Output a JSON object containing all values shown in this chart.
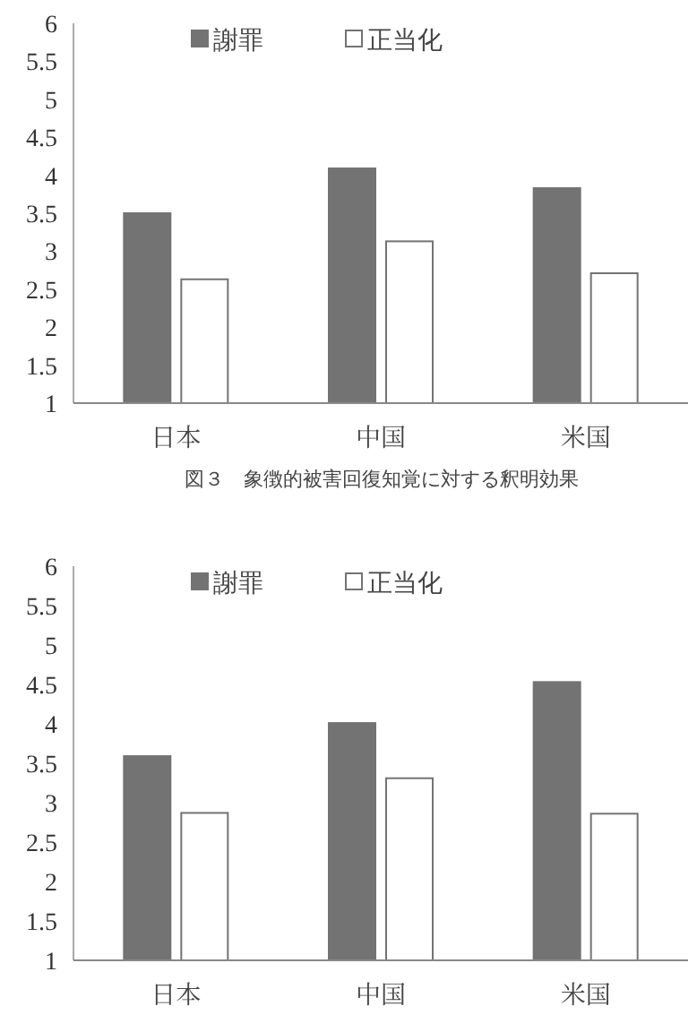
{
  "chart_data": [
    {
      "type": "bar",
      "categories": [
        "日本",
        "中国",
        "米国"
      ],
      "series": [
        {
          "name": "謝罪",
          "color": "#737373",
          "values": [
            3.5,
            4.09,
            3.83
          ]
        },
        {
          "name": "正当化",
          "color": "#ffffff",
          "values": [
            2.63,
            3.13,
            2.71
          ]
        }
      ],
      "ylim": [
        1,
        6
      ],
      "yticks": [
        1,
        1.5,
        2,
        2.5,
        3,
        3.5,
        4,
        4.5,
        5,
        5.5,
        6
      ],
      "legend": "top",
      "annotations": [
        "図３　象徴的被害回復知覚に対する釈明効果"
      ]
    },
    {
      "type": "bar",
      "categories": [
        "日本",
        "中国",
        "米国"
      ],
      "series": [
        {
          "name": "謝罪",
          "color": "#737373",
          "values": [
            3.59,
            4.01,
            4.53
          ]
        },
        {
          "name": "正当化",
          "color": "#ffffff",
          "values": [
            2.87,
            3.31,
            2.86
          ]
        }
      ],
      "ylim": [
        1,
        6
      ],
      "yticks": [
        1,
        1.5,
        2,
        2.5,
        3,
        3.5,
        4,
        4.5,
        5,
        5.5,
        6
      ],
      "legend": "top"
    }
  ]
}
